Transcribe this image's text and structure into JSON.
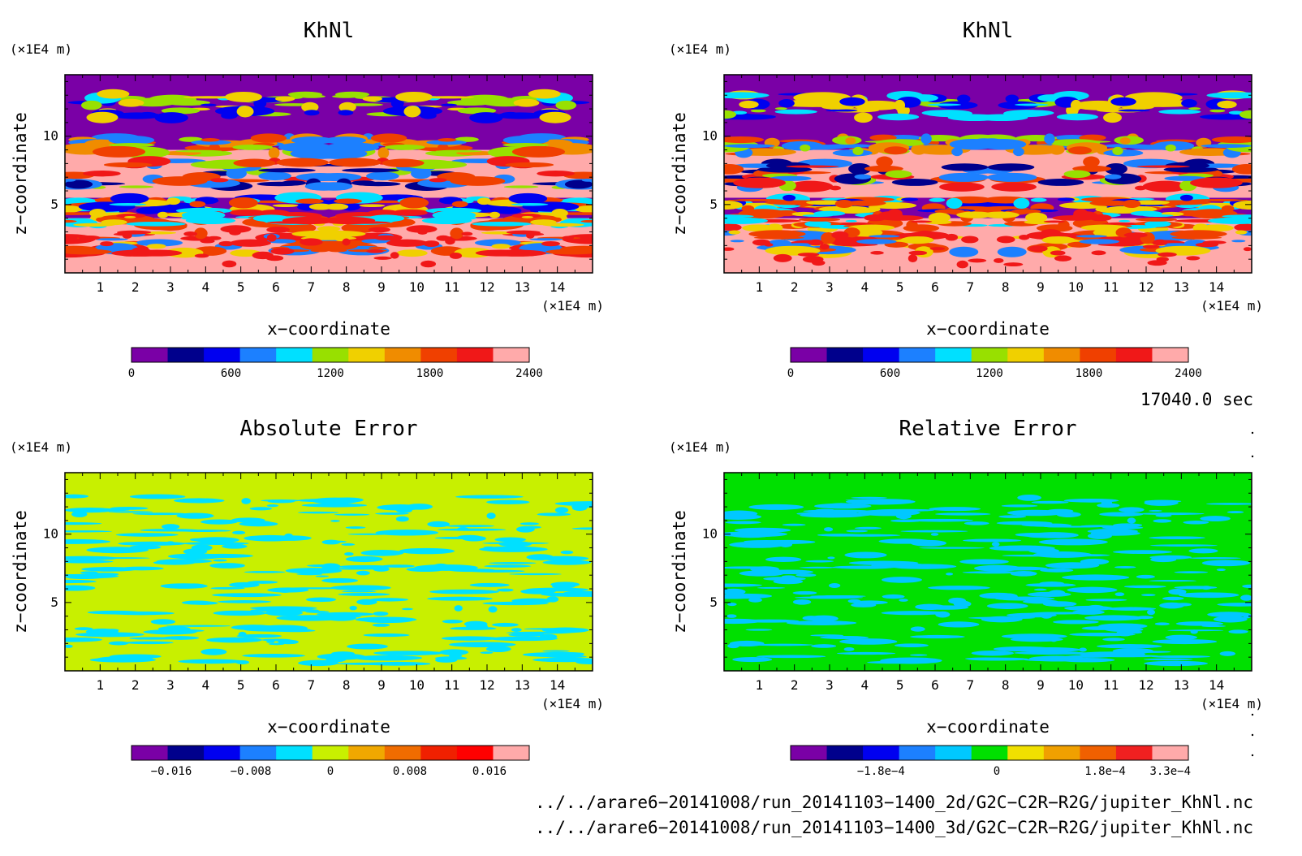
{
  "chart_data": [
    {
      "type": "heatmap",
      "panel": "top-left",
      "title": "KhNl",
      "xlabel": "x−coordinate",
      "ylabel": "z−coordinate",
      "x_unit": "(×1E4 m)",
      "y_unit": "(×1E4 m)",
      "xlim": [
        0,
        15
      ],
      "ylim": [
        0,
        14.5
      ],
      "xticks": [
        "1",
        "2",
        "3",
        "4",
        "5",
        "6",
        "7",
        "8",
        "9",
        "10",
        "11",
        "12",
        "13",
        "14"
      ],
      "yticks": [
        "5",
        "10"
      ],
      "colorbar": {
        "levels": [
          0,
          200,
          400,
          600,
          800,
          1000,
          1200,
          1400,
          1600,
          1800,
          2000,
          2200,
          2400
        ],
        "labels": [
          "0",
          "600",
          "1200",
          "1800",
          "2400"
        ],
        "colors": [
          "#7a00a6",
          "#00008c",
          "#0000f0",
          "#1c80ff",
          "#00e0ff",
          "#98e000",
          "#f0d000",
          "#f08c00",
          "#f04000",
          "#f01818",
          "#ffaaaa"
        ]
      },
      "field_layers_z": [
        {
          "z_range": [
            0,
            4
          ],
          "dominant_value": 2400
        },
        {
          "z_range": [
            4,
            5.5
          ],
          "dominant_value": 0
        },
        {
          "z_range": [
            5.5,
            9
          ],
          "dominant_value": 2400
        },
        {
          "z_range": [
            9,
            14.5
          ],
          "dominant_value": 0
        }
      ]
    },
    {
      "type": "heatmap",
      "panel": "top-right",
      "title": "KhNl",
      "xlabel": "x−coordinate",
      "ylabel": "z−coordinate",
      "x_unit": "(×1E4 m)",
      "y_unit": "(×1E4 m)",
      "xlim": [
        0,
        15
      ],
      "ylim": [
        0,
        14.5
      ],
      "xticks": [
        "1",
        "2",
        "3",
        "4",
        "5",
        "6",
        "7",
        "8",
        "9",
        "10",
        "11",
        "12",
        "13",
        "14"
      ],
      "yticks": [
        "5",
        "10"
      ],
      "colorbar": {
        "levels": [
          0,
          200,
          400,
          600,
          800,
          1000,
          1200,
          1400,
          1600,
          1800,
          2000,
          2200,
          2400
        ],
        "labels": [
          "0",
          "600",
          "1200",
          "1800",
          "2400"
        ],
        "colors": [
          "#7a00a6",
          "#00008c",
          "#0000f0",
          "#1c80ff",
          "#00e0ff",
          "#98e000",
          "#f0d000",
          "#f08c00",
          "#f04000",
          "#f01818",
          "#ffaaaa"
        ]
      },
      "field_layers_z": [
        {
          "z_range": [
            0,
            4
          ],
          "dominant_value": 2400
        },
        {
          "z_range": [
            4,
            5.5
          ],
          "dominant_value": 0
        },
        {
          "z_range": [
            5.5,
            9
          ],
          "dominant_value": 2400
        },
        {
          "z_range": [
            9,
            14.5
          ],
          "dominant_value": 0
        }
      ]
    },
    {
      "type": "heatmap",
      "panel": "bottom-left",
      "title": "Absolute Error",
      "xlabel": "x−coordinate",
      "ylabel": "z−coordinate",
      "x_unit": "(×1E4 m)",
      "y_unit": "(×1E4 m)",
      "xlim": [
        0,
        15
      ],
      "ylim": [
        0,
        14.5
      ],
      "xticks": [
        "1",
        "2",
        "3",
        "4",
        "5",
        "6",
        "7",
        "8",
        "9",
        "10",
        "11",
        "12",
        "13",
        "14"
      ],
      "yticks": [
        "5",
        "10"
      ],
      "colorbar": {
        "levels": [
          -0.02,
          -0.016,
          -0.012,
          -0.008,
          -0.004,
          0,
          0.004,
          0.008,
          0.012,
          0.016,
          0.02
        ],
        "labels": [
          "−0.016",
          "−0.008",
          "0",
          "0.008",
          "0.016"
        ],
        "colors": [
          "#7a00a6",
          "#00008c",
          "#0000f0",
          "#1c80ff",
          "#00e0ff",
          "#c8f000",
          "#f0a800",
          "#f06c00",
          "#f02000",
          "#ff0000",
          "#ffaaaa"
        ]
      },
      "background_value": 0.002,
      "patch_value": -0.002
    },
    {
      "type": "heatmap",
      "panel": "bottom-right",
      "title": "Relative Error",
      "xlabel": "x−coordinate",
      "ylabel": "z−coordinate",
      "x_unit": "(×1E4 m)",
      "y_unit": "(×1E4 m)",
      "xlim": [
        0,
        15
      ],
      "ylim": [
        0,
        14.5
      ],
      "xticks": [
        "1",
        "2",
        "3",
        "4",
        "5",
        "6",
        "7",
        "8",
        "9",
        "10",
        "11",
        "12",
        "13",
        "14"
      ],
      "yticks": [
        "5",
        "10"
      ],
      "colorbar": {
        "labels": [
          "−1.8e−4",
          "0",
          "1.8e−4",
          "3.3e−4"
        ],
        "colors": [
          "#7a00a6",
          "#00008c",
          "#0000f0",
          "#1c80ff",
          "#00c8ff",
          "#00e000",
          "#f0e000",
          "#f0a000",
          "#f06000",
          "#f02020",
          "#ffaaaa"
        ]
      },
      "background_value": 3e-05,
      "patch_value": -3e-05
    }
  ],
  "info": {
    "time": "17040.0 sec",
    "file_1": "../../arare6−20141008/run_20141103−1400_2d/G2C−C2R−R2G/jupiter_KhNl.nc",
    "file_2": "../../arare6−20141008/run_20141103−1400_3d/G2C−C2R−R2G/jupiter_KhNl.nc"
  }
}
